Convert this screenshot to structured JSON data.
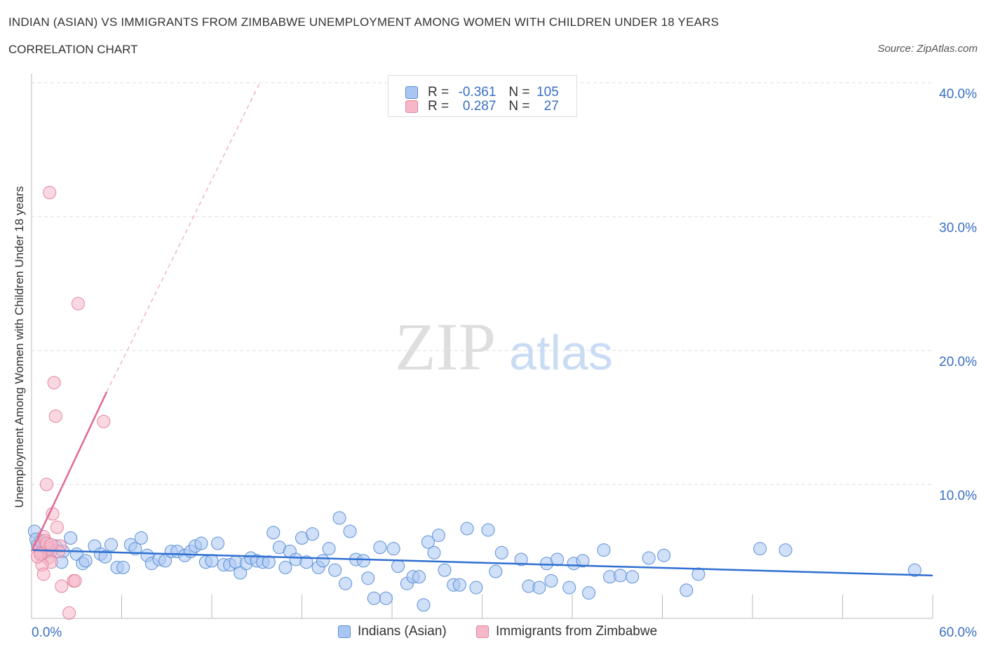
{
  "title": "INDIAN (ASIAN) VS IMMIGRANTS FROM ZIMBABWE UNEMPLOYMENT AMONG WOMEN WITH CHILDREN UNDER 18 YEARS",
  "subtitle": "CORRELATION CHART",
  "source": "Source: ZipAtlas.com",
  "watermark": {
    "zip": "ZIP",
    "atlas": "atlas"
  },
  "stats": [
    {
      "r_label": "R =",
      "r_value": "-0.361",
      "n_label": "N =",
      "n_value": "105",
      "color": "#a9c6f2"
    },
    {
      "r_label": "R =",
      "r_value": "0.287",
      "n_label": "N =",
      "n_value": "27",
      "color": "#f5b8c8"
    }
  ],
  "legend": [
    {
      "label": "Indians (Asian)",
      "color": "#a9c6f2"
    },
    {
      "label": "Immigrants from Zimbabwe",
      "color": "#f5b8c8"
    }
  ],
  "chart_data": {
    "type": "scatter",
    "ylabel": "Unemployment Among Women with Children Under 18 years",
    "xlim": [
      0,
      60
    ],
    "ylim": [
      0,
      40
    ],
    "x_tick_labels": [
      "0.0%",
      "60.0%"
    ],
    "y_ticks": [
      10,
      20,
      30,
      40
    ],
    "y_tick_labels": [
      "10.0%",
      "20.0%",
      "30.0%",
      "40.0%"
    ],
    "grid": true,
    "legend_position": "bottom-center",
    "series": [
      {
        "name": "Indians (Asian)",
        "color": "#a9c6f2",
        "stroke": "#5b8fd6",
        "trend": {
          "x": [
            0,
            60
          ],
          "y": [
            5.1,
            3.2
          ],
          "color": "#2f6fd0"
        },
        "points": [
          [
            0.2,
            6.5
          ],
          [
            0.4,
            5.5
          ],
          [
            0.6,
            5.8
          ],
          [
            0.8,
            4.9
          ],
          [
            1.0,
            5.3
          ],
          [
            1.3,
            5.0
          ],
          [
            1.6,
            5.4
          ],
          [
            2.1,
            5.0
          ],
          [
            2.6,
            6.0
          ],
          [
            3.0,
            4.8
          ],
          [
            3.4,
            4.1
          ],
          [
            3.6,
            4.3
          ],
          [
            4.2,
            5.4
          ],
          [
            4.6,
            4.8
          ],
          [
            4.9,
            4.6
          ],
          [
            5.3,
            5.5
          ],
          [
            5.7,
            3.8
          ],
          [
            6.1,
            3.8
          ],
          [
            6.6,
            5.5
          ],
          [
            6.9,
            5.2
          ],
          [
            7.3,
            6.0
          ],
          [
            7.7,
            4.7
          ],
          [
            8.0,
            4.1
          ],
          [
            8.5,
            4.4
          ],
          [
            8.9,
            4.3
          ],
          [
            9.3,
            5.0
          ],
          [
            9.7,
            5.0
          ],
          [
            10.2,
            4.7
          ],
          [
            10.6,
            5.0
          ],
          [
            10.9,
            5.4
          ],
          [
            11.3,
            5.6
          ],
          [
            11.6,
            4.2
          ],
          [
            12.0,
            4.3
          ],
          [
            12.4,
            5.6
          ],
          [
            12.8,
            4.0
          ],
          [
            13.2,
            4.0
          ],
          [
            13.6,
            4.2
          ],
          [
            13.9,
            3.4
          ],
          [
            14.3,
            4.1
          ],
          [
            14.6,
            4.5
          ],
          [
            15.0,
            4.3
          ],
          [
            15.4,
            4.2
          ],
          [
            15.8,
            4.2
          ],
          [
            16.1,
            6.4
          ],
          [
            16.5,
            5.3
          ],
          [
            16.9,
            3.8
          ],
          [
            17.2,
            5.0
          ],
          [
            17.6,
            4.4
          ],
          [
            18.0,
            6.0
          ],
          [
            18.3,
            4.2
          ],
          [
            18.7,
            6.3
          ],
          [
            19.1,
            3.8
          ],
          [
            19.4,
            4.3
          ],
          [
            19.8,
            5.2
          ],
          [
            20.2,
            3.6
          ],
          [
            20.5,
            7.5
          ],
          [
            20.9,
            2.6
          ],
          [
            21.2,
            6.5
          ],
          [
            21.6,
            4.4
          ],
          [
            22.1,
            4.3
          ],
          [
            22.4,
            3.0
          ],
          [
            22.8,
            1.5
          ],
          [
            23.2,
            5.3
          ],
          [
            23.6,
            1.5
          ],
          [
            24.1,
            5.2
          ],
          [
            24.4,
            3.9
          ],
          [
            25.0,
            2.6
          ],
          [
            25.4,
            3.1
          ],
          [
            25.8,
            3.1
          ],
          [
            26.1,
            1.0
          ],
          [
            26.4,
            5.7
          ],
          [
            26.8,
            4.9
          ],
          [
            27.1,
            6.2
          ],
          [
            27.5,
            3.6
          ],
          [
            28.1,
            2.5
          ],
          [
            28.5,
            2.5
          ],
          [
            29.0,
            6.7
          ],
          [
            29.6,
            2.3
          ],
          [
            30.4,
            6.6
          ],
          [
            30.9,
            3.5
          ],
          [
            31.3,
            4.9
          ],
          [
            32.6,
            4.4
          ],
          [
            33.1,
            2.4
          ],
          [
            33.8,
            2.3
          ],
          [
            34.3,
            4.1
          ],
          [
            34.6,
            2.8
          ],
          [
            35.0,
            4.4
          ],
          [
            35.8,
            2.3
          ],
          [
            36.1,
            4.1
          ],
          [
            36.7,
            4.3
          ],
          [
            37.1,
            1.9
          ],
          [
            38.1,
            5.1
          ],
          [
            38.5,
            3.1
          ],
          [
            39.2,
            3.2
          ],
          [
            40.0,
            3.1
          ],
          [
            41.1,
            4.5
          ],
          [
            42.1,
            4.7
          ],
          [
            43.6,
            2.1
          ],
          [
            44.4,
            3.3
          ],
          [
            48.5,
            5.2
          ],
          [
            50.2,
            5.1
          ],
          [
            58.8,
            3.6
          ],
          [
            0.3,
            5.9
          ],
          [
            2.0,
            4.2
          ]
        ]
      },
      {
        "name": "Immigrants from Zimbabwe",
        "color": "#f5b8c8",
        "stroke": "#e483a0",
        "trend": {
          "x": [
            0,
            5
          ],
          "y": [
            5.0,
            16.9
          ],
          "dashed_to": [
            15.2,
            40
          ],
          "color": "#e06a92"
        },
        "points": [
          [
            0.5,
            5.4
          ],
          [
            0.6,
            4.9
          ],
          [
            0.8,
            6.1
          ],
          [
            0.9,
            5.8
          ],
          [
            1.0,
            10.0
          ],
          [
            1.1,
            4.5
          ],
          [
            1.2,
            5.2
          ],
          [
            1.3,
            4.2
          ],
          [
            0.7,
            4.0
          ],
          [
            0.4,
            4.6
          ],
          [
            1.4,
            7.8
          ],
          [
            1.5,
            17.6
          ],
          [
            1.6,
            15.1
          ],
          [
            1.7,
            6.8
          ],
          [
            1.9,
            5.4
          ],
          [
            1.2,
            31.8
          ],
          [
            2.5,
            0.4
          ],
          [
            2.0,
            2.4
          ],
          [
            2.8,
            2.8
          ],
          [
            3.1,
            23.5
          ],
          [
            2.9,
            2.8
          ],
          [
            4.8,
            14.7
          ],
          [
            0.8,
            3.3
          ],
          [
            1.0,
            5.6
          ],
          [
            0.6,
            4.8
          ],
          [
            1.8,
            5.0
          ],
          [
            1.3,
            5.5
          ]
        ]
      }
    ]
  }
}
